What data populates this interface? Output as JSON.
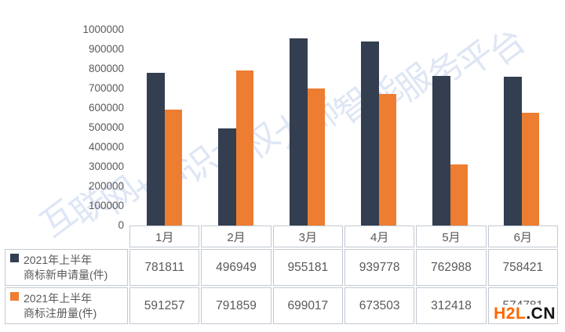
{
  "watermark": {
    "text": "互联网+知识产权大师智能服务平台",
    "color": "rgba(118,150,212,0.24)"
  },
  "chart_data": {
    "type": "bar",
    "categories": [
      "1月",
      "2月",
      "3月",
      "4月",
      "5月",
      "6月"
    ],
    "series": [
      {
        "name": "2021年上半年商标新申请量(件)",
        "name_line1": "2021年上半年",
        "name_line2": "商标新申请量(件)",
        "color": "#333F50",
        "values": [
          781811,
          496949,
          955181,
          939778,
          762988,
          758421
        ]
      },
      {
        "name": "2021年上半年商标注册量(件)",
        "name_line1": "2021年上半年",
        "name_line2": "商标注册量(件)",
        "color": "#ED7D31",
        "values": [
          591257,
          791859,
          699017,
          673503,
          312418,
          574781
        ]
      }
    ],
    "ylim": [
      0,
      1000000
    ],
    "ytick_step": 100000,
    "yticks": [
      "1000000",
      "900000",
      "800000",
      "700000",
      "600000",
      "500000",
      "400000",
      "300000",
      "200000",
      "100000",
      "0"
    ],
    "grid": false,
    "legend_position": "table-left-column"
  },
  "logo": {
    "part1": "H2L",
    "part2": ".CN",
    "part1_color": "#FF6600",
    "part2_color": "#141414"
  },
  "colors": {
    "series1": "#333F50",
    "series2": "#ED7D31",
    "axis_text": "#595959",
    "table_border": "#c2c9d2",
    "background": "#ffffff"
  }
}
